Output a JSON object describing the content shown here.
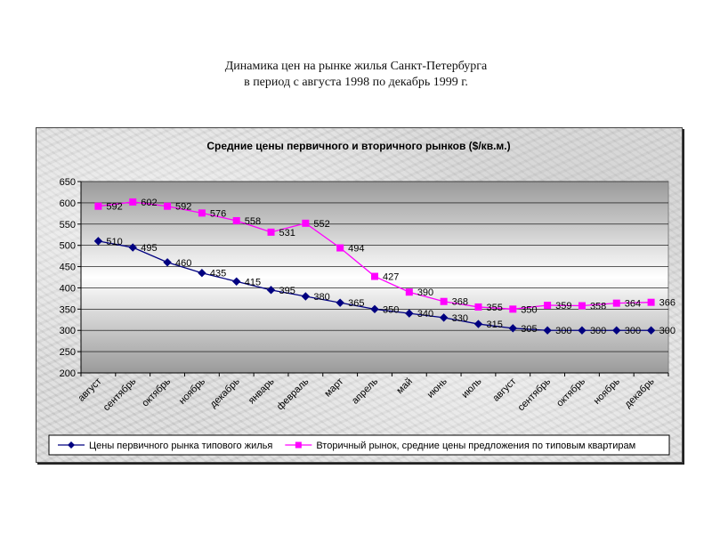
{
  "page": {
    "title_line1": "Динамика цен на рынке жилья Санкт-Петербурга",
    "title_line2": "в период с августа 1998 по декабрь 1999 г."
  },
  "chart_data": {
    "type": "line",
    "title": "Средние цены первичного и вторичного рынков ($/кв.м.)",
    "xlabel": "",
    "ylabel": "",
    "ylim": [
      200,
      650
    ],
    "ytick_step": 50,
    "grid": true,
    "legend_position": "bottom",
    "categories": [
      "август",
      "сентябрь",
      "октябрь",
      "ноябрь",
      "декабрь",
      "январь",
      "февраль",
      "март",
      "апрель",
      "май",
      "июнь",
      "июль",
      "август",
      "сентябрь",
      "октябрь",
      "ноябрь",
      "декабрь"
    ],
    "series": [
      {
        "name": "Цены первичного рынка типового жилья",
        "color": "#000080",
        "marker": "diamond",
        "values": [
          510,
          495,
          460,
          435,
          415,
          395,
          380,
          365,
          350,
          340,
          330,
          315,
          305,
          300,
          300,
          300,
          300
        ]
      },
      {
        "name": "Вторичный рынок, средние цены предложения по типовым квартирам",
        "color": "#ff00ff",
        "marker": "square",
        "values": [
          592,
          602,
          592,
          576,
          558,
          531,
          552,
          494,
          427,
          390,
          368,
          355,
          350,
          359,
          358,
          364,
          366
        ]
      }
    ]
  }
}
